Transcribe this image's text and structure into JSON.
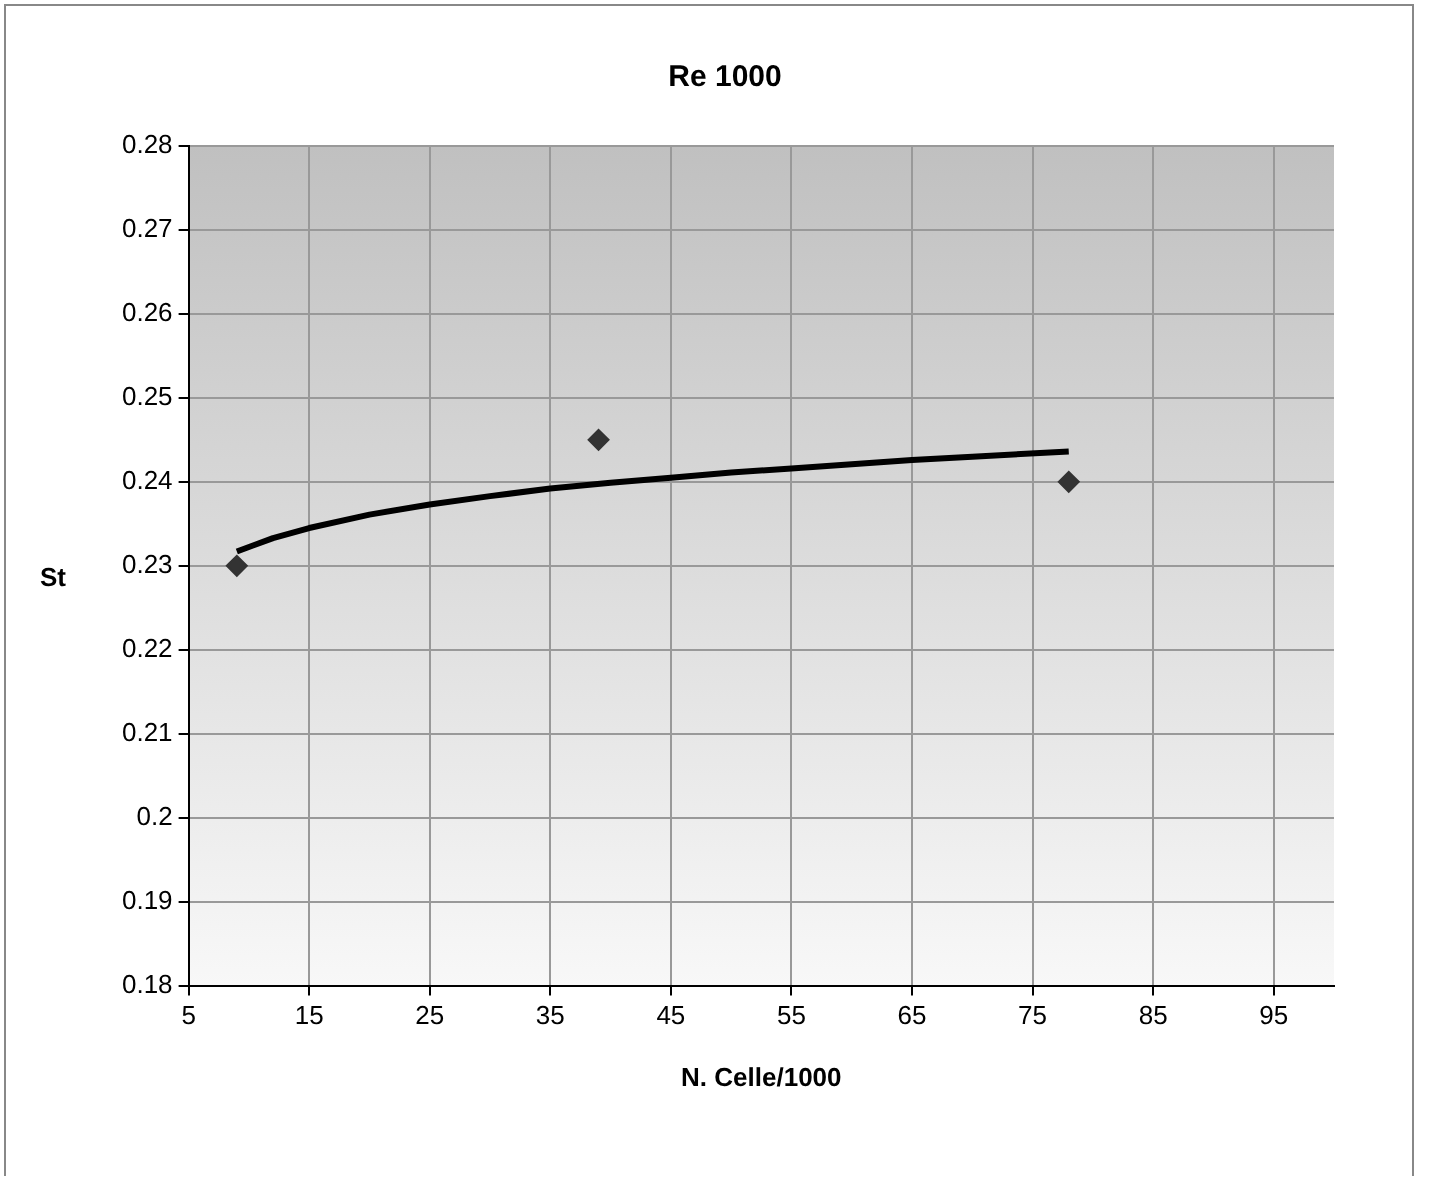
{
  "chart_data": {
    "type": "scatter",
    "title": "Re 1000",
    "xlabel": "N. Celle/1000",
    "ylabel": "St",
    "xlim": [
      5,
      100
    ],
    "xticks": [
      5,
      15,
      25,
      35,
      45,
      55,
      65,
      75,
      85,
      95
    ],
    "ylim": [
      0.18,
      0.28
    ],
    "yticks": [
      0.18,
      0.19,
      0.2,
      0.21,
      0.22,
      0.23,
      0.24,
      0.25,
      0.26,
      0.27,
      0.28
    ],
    "grid": true,
    "legend": false,
    "series": [
      {
        "marker": "diamond",
        "color": "#333333",
        "x": [
          9,
          39,
          78
        ],
        "values": [
          0.23,
          0.245,
          0.24
        ]
      },
      {
        "type": "line",
        "marker": "none",
        "color": "#000000",
        "x": [
          9,
          12,
          15,
          20,
          25,
          30,
          35,
          40,
          45,
          50,
          55,
          60,
          65,
          70,
          78
        ],
        "values": [
          0.2317,
          0.2333,
          0.2345,
          0.2361,
          0.2373,
          0.2383,
          0.2392,
          0.2399,
          0.2405,
          0.2411,
          0.2416,
          0.2421,
          0.2426,
          0.243,
          0.2436
        ]
      }
    ]
  }
}
